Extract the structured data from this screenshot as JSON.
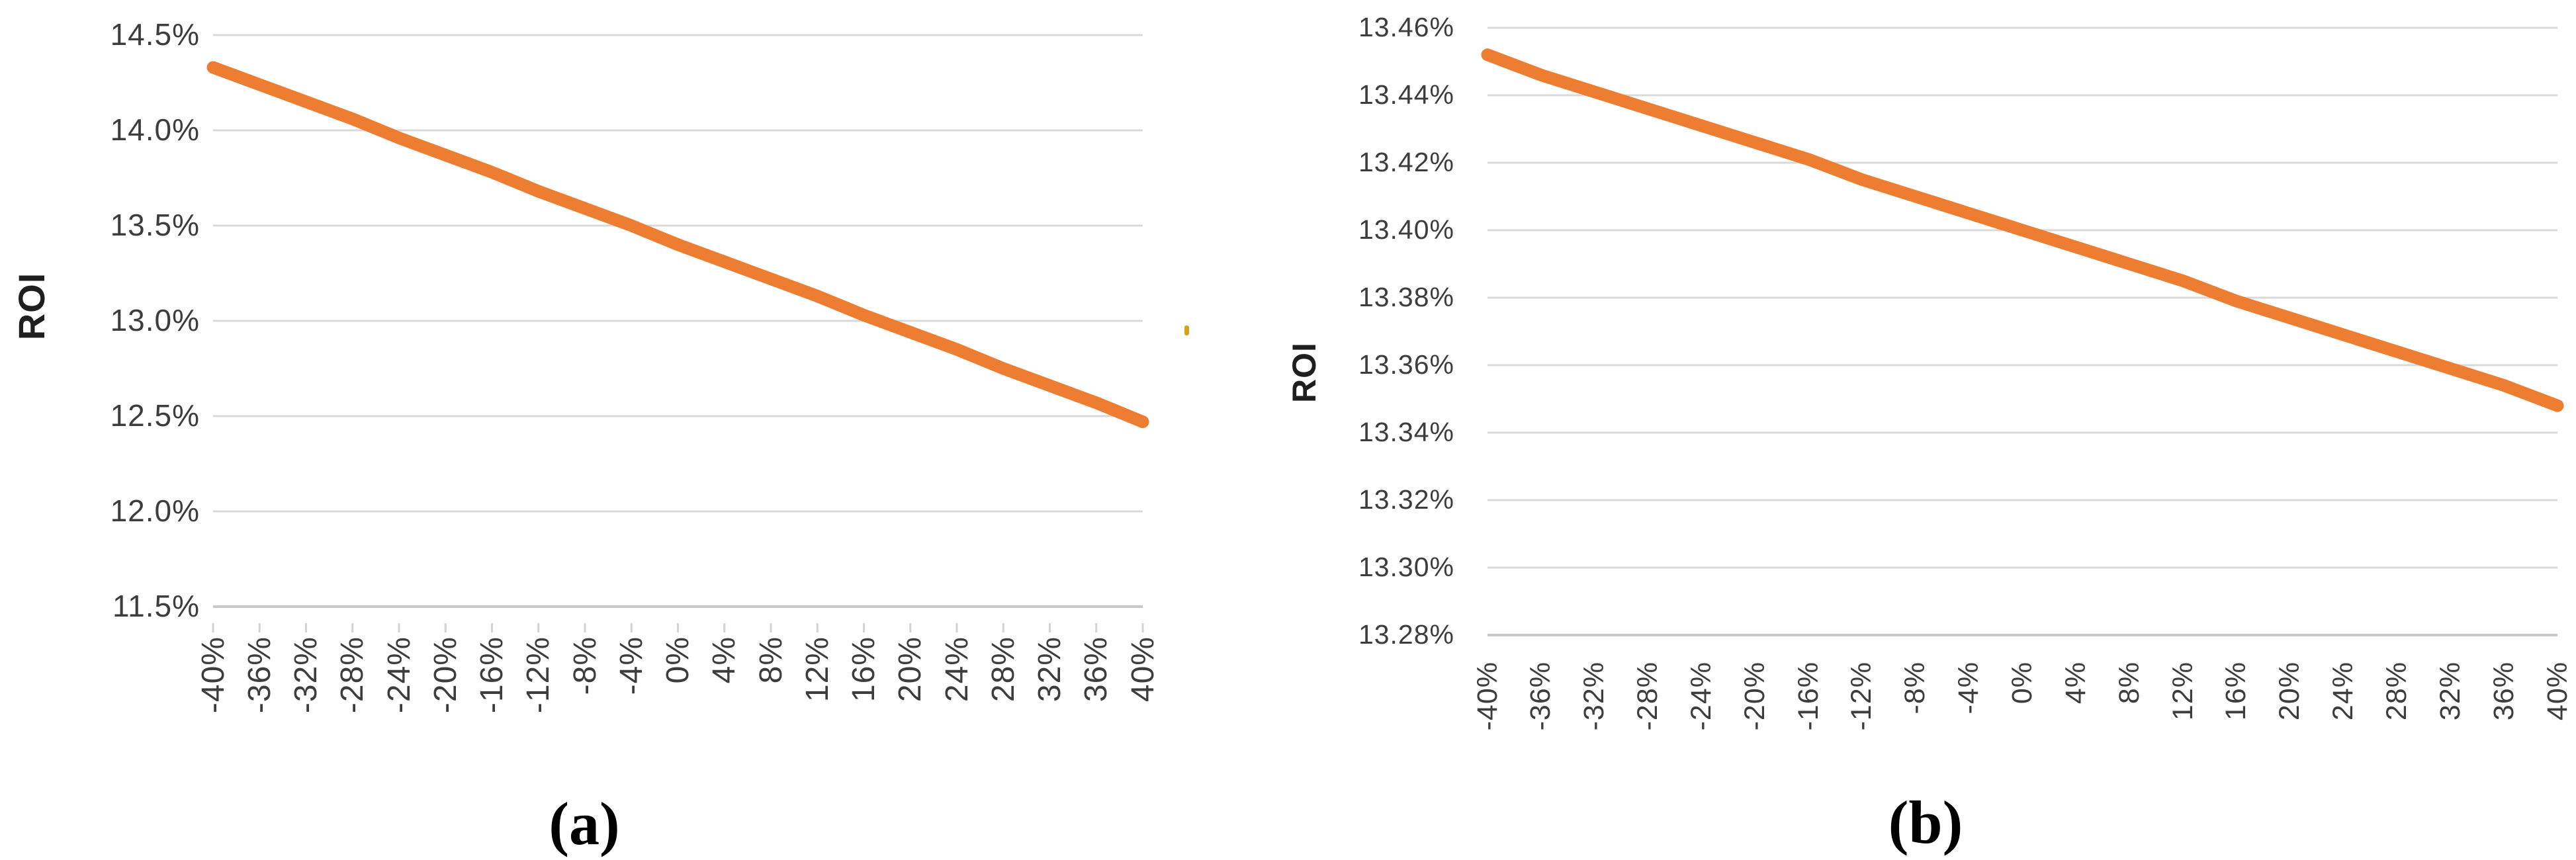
{
  "figure": {
    "description": "Two-panel ROI sensitivity line chart figure",
    "colors": {
      "line": "#ED7D31",
      "gridline": "#D9D9D9",
      "axis_line": "#C9C9C9",
      "tick_mark": "#D3D3D3",
      "tick_text": "#3D3D3D",
      "caption_text": "#000000",
      "stray_mark": "#D5A021"
    }
  },
  "chart_data": [
    {
      "id": "a",
      "type": "line",
      "title": "",
      "caption": "(a)",
      "ylabel": "ROI",
      "xlabel": "",
      "grid": true,
      "legend": "none",
      "x_values_pct": [
        -40,
        -36,
        -32,
        -28,
        -24,
        -20,
        -16,
        -12,
        -8,
        -4,
        0,
        4,
        8,
        12,
        16,
        20,
        24,
        28,
        32,
        36,
        40
      ],
      "x_tick_labels": [
        "-40%",
        "-36%",
        "-32%",
        "-28%",
        "-24%",
        "-20%",
        "-16%",
        "-12%",
        "-8%",
        "-4%",
        "0%",
        "4%",
        "8%",
        "12%",
        "16%",
        "20%",
        "24%",
        "28%",
        "32%",
        "36%",
        "40%"
      ],
      "series": [
        {
          "name": "ROI",
          "color": "#ED7D31",
          "values_pct": [
            14.33,
            14.24,
            14.15,
            14.06,
            13.96,
            13.87,
            13.78,
            13.68,
            13.59,
            13.5,
            13.4,
            13.31,
            13.22,
            13.13,
            13.03,
            12.94,
            12.85,
            12.75,
            12.66,
            12.57,
            12.47
          ]
        }
      ],
      "ylim_pct": [
        11.5,
        14.5
      ],
      "y_ticks_pct": [
        14.5,
        14.0,
        13.5,
        13.0,
        12.5,
        12.0,
        11.5
      ],
      "y_tick_labels": [
        "14.5%",
        "14.0%",
        "13.5%",
        "13.0%",
        "12.5%",
        "12.0%",
        "11.5%"
      ]
    },
    {
      "id": "b",
      "type": "line",
      "title": "",
      "caption": "(b)",
      "ylabel": "ROI",
      "xlabel": "",
      "grid": true,
      "legend": "none",
      "x_values_pct": [
        -40,
        -36,
        -32,
        -28,
        -24,
        -20,
        -16,
        -12,
        -8,
        -4,
        0,
        4,
        8,
        12,
        16,
        20,
        24,
        28,
        32,
        36,
        40
      ],
      "x_tick_labels": [
        "-40%",
        "-36%",
        "-32%",
        "-28%",
        "-24%",
        "-20%",
        "-16%",
        "-12%",
        "-8%",
        "-4%",
        "0%",
        "4%",
        "8%",
        "12%",
        "16%",
        "20%",
        "24%",
        "28%",
        "32%",
        "36%",
        "40%"
      ],
      "series": [
        {
          "name": "ROI",
          "color": "#ED7D31",
          "values_pct": [
            13.452,
            13.446,
            13.441,
            13.436,
            13.431,
            13.426,
            13.421,
            13.415,
            13.41,
            13.405,
            13.4,
            13.395,
            13.39,
            13.385,
            13.379,
            13.374,
            13.369,
            13.364,
            13.359,
            13.354,
            13.348
          ]
        }
      ],
      "ylim_pct": [
        13.28,
        13.46
      ],
      "y_ticks_pct": [
        13.46,
        13.44,
        13.42,
        13.4,
        13.38,
        13.36,
        13.34,
        13.32,
        13.3,
        13.28
      ],
      "y_tick_labels": [
        "13.46%",
        "13.44%",
        "13.42%",
        "13.40%",
        "13.38%",
        "13.36%",
        "13.34%",
        "13.32%",
        "13.30%",
        "13.28%"
      ]
    }
  ]
}
